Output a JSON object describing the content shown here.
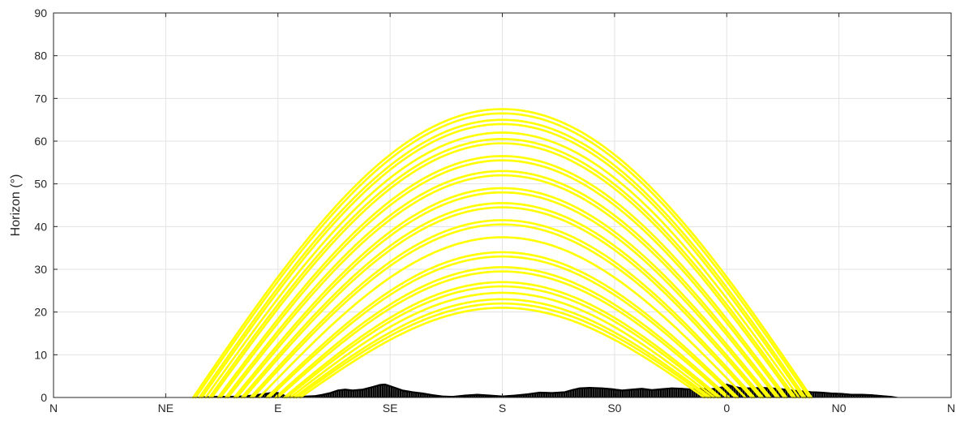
{
  "chart_data": {
    "type": "line",
    "title": "",
    "xlabel": "",
    "ylabel": "Horizon (°)",
    "ylim": [
      0,
      90
    ],
    "yticks": [
      0,
      10,
      20,
      30,
      40,
      50,
      60,
      70,
      80,
      90
    ],
    "xlim": [
      0,
      360
    ],
    "xticks": [
      {
        "value": 0,
        "label": "N"
      },
      {
        "value": 45,
        "label": "NE"
      },
      {
        "value": 90,
        "label": "E"
      },
      {
        "value": 135,
        "label": "SE"
      },
      {
        "value": 180,
        "label": "S"
      },
      {
        "value": 225,
        "label": "S0"
      },
      {
        "value": 270,
        "label": "0"
      },
      {
        "value": 315,
        "label": "N0"
      },
      {
        "value": 360,
        "label": "N"
      }
    ],
    "grid": true,
    "colors": {
      "sun_path": "#ffff00",
      "horizon": "#000000",
      "grid": "#e3e3e3",
      "axis": "#262626"
    },
    "sun_paths": [
      {
        "max_elevation": 67.5,
        "rise_azimuth": 56,
        "set_azimuth": 304
      },
      {
        "max_elevation": 66.5,
        "rise_azimuth": 57,
        "set_azimuth": 303
      },
      {
        "max_elevation": 65.0,
        "rise_azimuth": 58.5,
        "set_azimuth": 301.5
      },
      {
        "max_elevation": 64.0,
        "rise_azimuth": 59.5,
        "set_azimuth": 300.5
      },
      {
        "max_elevation": 62.0,
        "rise_azimuth": 61,
        "set_azimuth": 299
      },
      {
        "max_elevation": 60.5,
        "rise_azimuth": 62.5,
        "set_azimuth": 297.5
      },
      {
        "max_elevation": 59.5,
        "rise_azimuth": 63.5,
        "set_azimuth": 296.5
      },
      {
        "max_elevation": 56.5,
        "rise_azimuth": 66,
        "set_azimuth": 294
      },
      {
        "max_elevation": 55.5,
        "rise_azimuth": 67,
        "set_azimuth": 293
      },
      {
        "max_elevation": 53.0,
        "rise_azimuth": 69,
        "set_azimuth": 291
      },
      {
        "max_elevation": 52.0,
        "rise_azimuth": 70,
        "set_azimuth": 290
      },
      {
        "max_elevation": 49.0,
        "rise_azimuth": 72.5,
        "set_azimuth": 287.5
      },
      {
        "max_elevation": 48.0,
        "rise_azimuth": 73.5,
        "set_azimuth": 286.5
      },
      {
        "max_elevation": 45.5,
        "rise_azimuth": 75.5,
        "set_azimuth": 284.5
      },
      {
        "max_elevation": 44.5,
        "rise_azimuth": 76.5,
        "set_azimuth": 283.5
      },
      {
        "max_elevation": 41.5,
        "rise_azimuth": 79,
        "set_azimuth": 281
      },
      {
        "max_elevation": 40.5,
        "rise_azimuth": 80,
        "set_azimuth": 280
      },
      {
        "max_elevation": 37.5,
        "rise_azimuth": 82.5,
        "set_azimuth": 277.5
      },
      {
        "max_elevation": 34.0,
        "rise_azimuth": 85.5,
        "set_azimuth": 274.5
      },
      {
        "max_elevation": 33.0,
        "rise_azimuth": 86.5,
        "set_azimuth": 273.5
      },
      {
        "max_elevation": 30.5,
        "rise_azimuth": 89,
        "set_azimuth": 271
      },
      {
        "max_elevation": 29.5,
        "rise_azimuth": 90,
        "set_azimuth": 270
      },
      {
        "max_elevation": 27.0,
        "rise_azimuth": 92.5,
        "set_azimuth": 267.5
      },
      {
        "max_elevation": 26.0,
        "rise_azimuth": 93.5,
        "set_azimuth": 266.5
      },
      {
        "max_elevation": 24.5,
        "rise_azimuth": 95,
        "set_azimuth": 265
      },
      {
        "max_elevation": 23.0,
        "rise_azimuth": 96.5,
        "set_azimuth": 263.5
      },
      {
        "max_elevation": 22.0,
        "rise_azimuth": 97.5,
        "set_azimuth": 262.5
      },
      {
        "max_elevation": 21.0,
        "rise_azimuth": 99,
        "set_azimuth": 261
      }
    ],
    "horizon_profile": [
      [
        0,
        0
      ],
      [
        55,
        0
      ],
      [
        60,
        0.2
      ],
      [
        65,
        0.3
      ],
      [
        70,
        0.3
      ],
      [
        75,
        0.4
      ],
      [
        80,
        0.6
      ],
      [
        85,
        1.0
      ],
      [
        88,
        1.3
      ],
      [
        90,
        1.2
      ],
      [
        93,
        0.5
      ],
      [
        97,
        0.3
      ],
      [
        102,
        0.4
      ],
      [
        105,
        0.5
      ],
      [
        108,
        0.8
      ],
      [
        111,
        1.2
      ],
      [
        114,
        1.8
      ],
      [
        117,
        2.0
      ],
      [
        120,
        1.8
      ],
      [
        124,
        2.0
      ],
      [
        128,
        2.6
      ],
      [
        131,
        3.1
      ],
      [
        133,
        3.2
      ],
      [
        136,
        2.6
      ],
      [
        140,
        1.8
      ],
      [
        144,
        1.4
      ],
      [
        148,
        1.1
      ],
      [
        152,
        0.7
      ],
      [
        156,
        0.4
      ],
      [
        160,
        0.3
      ],
      [
        165,
        0.6
      ],
      [
        170,
        0.8
      ],
      [
        175,
        0.6
      ],
      [
        180,
        0.4
      ],
      [
        185,
        0.6
      ],
      [
        190,
        0.9
      ],
      [
        195,
        1.3
      ],
      [
        200,
        1.2
      ],
      [
        205,
        1.4
      ],
      [
        208,
        1.9
      ],
      [
        211,
        2.3
      ],
      [
        215,
        2.4
      ],
      [
        220,
        2.3
      ],
      [
        224,
        2.1
      ],
      [
        228,
        1.8
      ],
      [
        232,
        2.0
      ],
      [
        236,
        2.2
      ],
      [
        240,
        1.9
      ],
      [
        244,
        2.1
      ],
      [
        248,
        2.3
      ],
      [
        252,
        2.2
      ],
      [
        256,
        2.0
      ],
      [
        260,
        2.2
      ],
      [
        264,
        2.1
      ],
      [
        268,
        2.5
      ],
      [
        270,
        3.2
      ],
      [
        272,
        2.8
      ],
      [
        276,
        2.3
      ],
      [
        280,
        2.3
      ],
      [
        284,
        2.4
      ],
      [
        288,
        2.3
      ],
      [
        292,
        2.1
      ],
      [
        296,
        1.8
      ],
      [
        300,
        1.6
      ],
      [
        304,
        1.4
      ],
      [
        308,
        1.3
      ],
      [
        312,
        1.1
      ],
      [
        316,
        1.0
      ],
      [
        320,
        0.8
      ],
      [
        324,
        0.8
      ],
      [
        328,
        0.7
      ],
      [
        332,
        0.5
      ],
      [
        336,
        0.3
      ],
      [
        338,
        0.1
      ],
      [
        339,
        0
      ],
      [
        360,
        0
      ]
    ]
  }
}
